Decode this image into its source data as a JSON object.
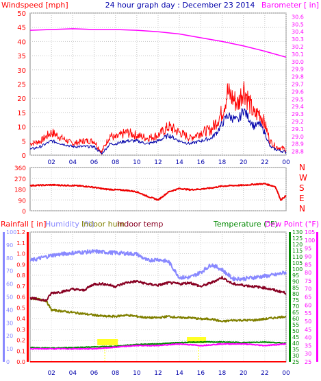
{
  "header": {
    "title": "24 hour graph day : December 23 2014",
    "windspeed_label": "Windspeed [mph]",
    "barometer_label": "Barometer [ in]"
  },
  "middle": {
    "compass_labels": [
      "N",
      "W",
      "S",
      "E",
      "N"
    ]
  },
  "bottom_header": {
    "rainfall_label": "Rainfall [ in]",
    "humidity_label": "Humidity (%)",
    "indoor_hum_label": "Indoor hum",
    "indoor_temp_label": "Indoor temp",
    "temperature_label": "Temperature (°F)",
    "dewpoint_label": "Dew Point (°F)"
  },
  "colors": {
    "wind_gust": "#ff0000",
    "wind_avg": "#0000aa",
    "barometer": "#ff00ff",
    "direction": "#ee0000",
    "rain": "#ff0000",
    "humidity": "#8888ff",
    "indoor_hum": "#808000",
    "indoor_temp": "#880022",
    "temperature": "#008800",
    "dewpoint": "#ff00ff",
    "rain_axis": "#ff0000",
    "humidity_axis": "#8888ff",
    "temp_axis": "#008800",
    "dew_axis": "#ff00ff",
    "title": "#0000aa",
    "axis_left_top": "#ff0000",
    "axis_right_top": "#ff00ff",
    "highlight_yellow": "#ffff00"
  },
  "chart_data": [
    {
      "type": "line",
      "x_ticks": [
        "02",
        "04",
        "06",
        "08",
        "10",
        "12",
        "14",
        "16",
        "18",
        "20",
        "22",
        "00"
      ],
      "left_axis": {
        "label": "Windspeed [mph]",
        "ticks": [
          0,
          5,
          10,
          15,
          20,
          25,
          30,
          35,
          40,
          45,
          50
        ],
        "ylim": [
          0,
          50
        ]
      },
      "right_axis": {
        "label": "Barometer [ in]",
        "ticks": [
          28.8,
          28.9,
          29.0,
          29.1,
          29.2,
          29.3,
          29.4,
          29.5,
          29.6,
          29.7,
          29.8,
          29.9,
          30.0,
          30.1,
          30.2,
          30.3,
          30.4,
          30.5,
          30.6
        ],
        "ylim": [
          28.75,
          30.65
        ]
      },
      "series": [
        {
          "key": "gust",
          "x": [
            0,
            1,
            2,
            3,
            4,
            5,
            6,
            6.7,
            7.5,
            8,
            9,
            10,
            11,
            12,
            13,
            14,
            15,
            16,
            17,
            17.5,
            18,
            18.5,
            19,
            19.5,
            20,
            20.5,
            21,
            21.5,
            22,
            22.5,
            23,
            24
          ],
          "values": [
            4,
            5,
            8,
            6,
            4,
            5,
            5,
            1,
            7,
            6,
            8,
            7,
            6,
            7,
            10,
            8,
            6,
            8,
            9,
            12,
            15,
            22,
            20,
            18,
            24,
            19,
            14,
            15,
            11,
            5,
            3,
            2
          ]
        },
        {
          "key": "avg",
          "x": [
            0,
            1,
            2,
            3,
            4,
            5,
            6,
            6.7,
            7.5,
            8,
            9,
            10,
            11,
            12,
            13,
            14,
            15,
            16,
            17,
            17.5,
            18,
            18.5,
            19,
            19.5,
            20,
            20.5,
            21,
            21.5,
            22,
            22.5,
            23,
            24
          ],
          "values": [
            2,
            3,
            5,
            4,
            3,
            3,
            3,
            0.5,
            4,
            4,
            5,
            5,
            4,
            5,
            7,
            5,
            4,
            5,
            6,
            8,
            11,
            14,
            13,
            12,
            16,
            13,
            10,
            11,
            8,
            3,
            2,
            1
          ]
        },
        {
          "key": "barometer",
          "axis": "right",
          "x": [
            0,
            2,
            4,
            6,
            8,
            10,
            12,
            14,
            16,
            18,
            20,
            22,
            24
          ],
          "values": [
            30.42,
            30.43,
            30.44,
            30.43,
            30.43,
            30.42,
            30.4,
            30.37,
            30.32,
            30.27,
            30.21,
            30.14,
            30.06
          ]
        }
      ]
    },
    {
      "type": "line",
      "x_ticks": [
        "02",
        "04",
        "06",
        "08",
        "10",
        "12",
        "14",
        "16",
        "18",
        "20",
        "22",
        "00"
      ],
      "left_axis": {
        "ticks": [
          0,
          90,
          180,
          270,
          360
        ],
        "ylim": [
          0,
          360
        ]
      },
      "series": [
        {
          "key": "direction",
          "x": [
            0,
            1,
            2,
            3,
            4,
            5,
            6,
            7,
            8,
            9,
            10,
            11,
            12,
            13,
            14,
            15,
            16,
            17,
            18,
            19,
            20,
            21,
            22,
            23,
            23.5,
            24
          ],
          "values": [
            210,
            212,
            215,
            212,
            210,
            205,
            195,
            180,
            175,
            170,
            158,
            120,
            90,
            158,
            185,
            175,
            180,
            190,
            205,
            210,
            212,
            220,
            225,
            200,
            90,
            125
          ]
        }
      ]
    },
    {
      "type": "line",
      "x_ticks": [
        "02",
        "04",
        "06",
        "08",
        "10",
        "12",
        "14",
        "16",
        "18",
        "20",
        "22",
        "00"
      ],
      "rain_axis": {
        "label": "Rainfall [ in]",
        "ticks": [
          0,
          0.1,
          0.2,
          0.3,
          0.4,
          0.5,
          0.6,
          0.7,
          0.8,
          0.9,
          1,
          1.1,
          1.2
        ],
        "ylim": [
          0,
          1.2
        ]
      },
      "humidity_axis": {
        "label": "Humidity (%)",
        "ticks": [
          0,
          10,
          20,
          30,
          40,
          50,
          60,
          70,
          80,
          90,
          100
        ],
        "ylim": [
          0,
          100
        ]
      },
      "temp_axis": {
        "label": "Temperature (°F)",
        "ticks": [
          25,
          30,
          35,
          40,
          45,
          50,
          55,
          60,
          65,
          70,
          75,
          80,
          85,
          90,
          95,
          100,
          105,
          110,
          115,
          120,
          125,
          130
        ],
        "ylim": [
          25,
          130
        ]
      },
      "dew_axis": {
        "label": "Dew Point (°F)",
        "ticks": [
          25,
          30,
          35,
          40,
          45,
          50,
          55,
          60,
          65,
          70,
          75,
          80,
          85,
          90,
          95,
          100,
          105
        ],
        "ylim": [
          25,
          105
        ]
      },
      "series": [
        {
          "key": "rain",
          "axis": "rain",
          "x": [
            0,
            24
          ],
          "values": [
            0,
            0
          ]
        },
        {
          "key": "humidity",
          "axis": "humidity",
          "x": [
            0,
            2,
            4,
            6,
            8,
            10,
            11,
            12,
            13,
            14,
            15,
            16,
            17,
            18,
            19,
            20,
            21,
            22,
            23,
            24
          ],
          "values": [
            78,
            82,
            84,
            85,
            84,
            83,
            78,
            79,
            77,
            65,
            65,
            69,
            75,
            71,
            64,
            64,
            65,
            66,
            67,
            69
          ]
        },
        {
          "key": "indoor_hum",
          "axis": "humidity",
          "x": [
            0,
            1,
            1.5,
            2,
            3,
            4,
            5,
            6,
            7,
            8,
            9,
            10,
            11,
            12,
            13,
            14,
            15,
            16,
            17,
            18,
            19,
            20,
            21,
            22,
            23,
            24
          ],
          "values": [
            49,
            48,
            47,
            40,
            39,
            38,
            37,
            36,
            35,
            35,
            36,
            35,
            34,
            34,
            35,
            34,
            34,
            33,
            33,
            31,
            32,
            32,
            32,
            33,
            34,
            35
          ]
        },
        {
          "key": "indoor_temp",
          "axis": "humidity",
          "x": [
            0,
            1,
            1.5,
            2,
            3,
            4,
            5,
            6,
            7,
            8,
            9,
            10,
            11,
            12,
            13,
            14,
            15,
            16,
            17,
            18,
            19,
            20,
            21,
            22,
            23,
            24
          ],
          "values": [
            49,
            48,
            47,
            53,
            54,
            56,
            55,
            60,
            60,
            58,
            61,
            62,
            60,
            59,
            61,
            60,
            61,
            58,
            61,
            65,
            60,
            59,
            58,
            57,
            55,
            53
          ]
        },
        {
          "key": "temperature",
          "axis": "temp",
          "x": [
            0,
            2,
            4,
            6,
            8,
            10,
            12,
            14,
            16,
            18,
            20,
            22,
            24
          ],
          "values": [
            36.5,
            36,
            36.5,
            37,
            37.5,
            39,
            39.5,
            40.5,
            41,
            41,
            40.5,
            41,
            40
          ]
        },
        {
          "key": "dewpoint",
          "axis": "dew",
          "x": [
            0,
            2,
            4,
            6,
            8,
            10,
            12,
            14,
            16,
            18,
            20,
            22,
            24
          ],
          "values": [
            33,
            33,
            33,
            33,
            34,
            35,
            35,
            36,
            35,
            36,
            36,
            35,
            36
          ]
        }
      ]
    }
  ]
}
